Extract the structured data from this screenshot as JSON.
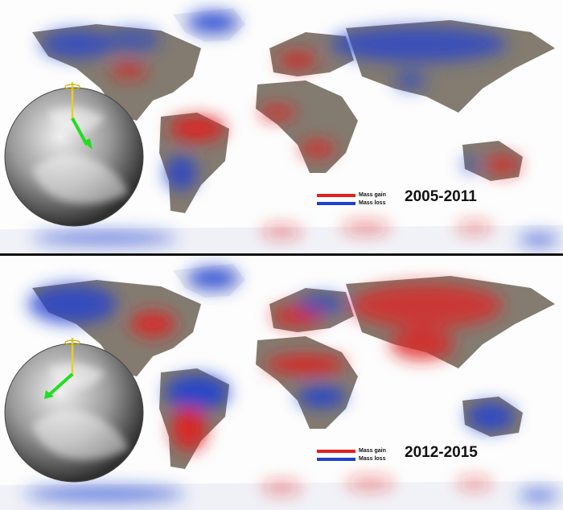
{
  "panels": [
    {
      "period": "2005-2011",
      "legend": [
        {
          "label": "Mass gain",
          "color": "#e02020"
        },
        {
          "label": "Mass loss",
          "color": "#2040d0"
        }
      ]
    },
    {
      "period": "2012-2015",
      "legend": [
        {
          "label": "Mass gain",
          "color": "#e02020"
        },
        {
          "label": "Mass loss",
          "color": "#2040d0"
        }
      ]
    }
  ],
  "colors": {
    "gain": "#e02020",
    "loss": "#2040d0",
    "land": "#6f6558",
    "arrow": "#22dd22",
    "axis": "#e8d020"
  }
}
